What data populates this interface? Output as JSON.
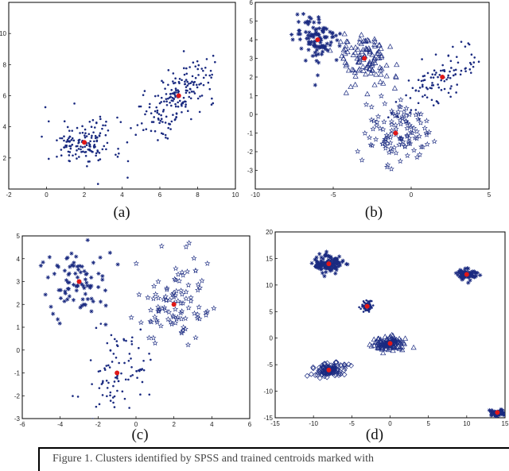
{
  "chart_data": [
    {
      "type": "scatter",
      "panel_label": "(a)",
      "xlim": [
        -2,
        10
      ],
      "ylim": [
        0,
        12
      ],
      "xticks": [
        "-2",
        "0",
        "2",
        "4",
        "6",
        "8",
        "10"
      ],
      "yticks": [
        "2",
        "4",
        "6",
        "8",
        "10"
      ],
      "series": [
        {
          "marker": "dot",
          "color": "#1a2a80",
          "clusters": [
            {
              "cx": 2,
              "cy": 3,
              "sx": 1.0,
              "sy": 0.75,
              "r": -0.05,
              "n": 150
            },
            {
              "cx": 7,
              "cy": 6,
              "sx": 1.0,
              "sy": 1.2,
              "r": 0.7,
              "n": 190
            }
          ]
        }
      ],
      "centroids": [
        [
          2,
          3
        ],
        [
          7,
          6
        ]
      ]
    },
    {
      "type": "scatter",
      "panel_label": "(b)",
      "xlim": [
        -10,
        5
      ],
      "ylim": [
        -4,
        6
      ],
      "xticks": [
        "-10",
        "-5",
        "0",
        "5"
      ],
      "yticks": [
        "-3",
        "-2",
        "-1",
        "0",
        "1",
        "2",
        "3",
        "4",
        "5",
        "6"
      ],
      "series": [
        {
          "marker": "asterisk",
          "color": "#1a2a80",
          "clusters": [
            {
              "cx": -6,
              "cy": 4,
              "sx": 0.7,
              "sy": 0.6,
              "r": 0,
              "n": 110
            }
          ]
        },
        {
          "marker": "triangle",
          "color": "#1a2a80",
          "clusters": [
            {
              "cx": -3,
              "cy": 3,
              "sx": 0.9,
              "sy": 0.8,
              "r": -0.2,
              "n": 110
            }
          ]
        },
        {
          "marker": "dot",
          "color": "#1a2a80",
          "clusters": [
            {
              "cx": 2,
              "cy": 2,
              "sx": 1.4,
              "sy": 1.0,
              "r": 0.8,
              "n": 110
            }
          ]
        },
        {
          "marker": "star",
          "color": "#1a2a80",
          "clusters": [
            {
              "cx": -1,
              "cy": -1,
              "sx": 1.0,
              "sy": 0.9,
              "r": 0,
              "n": 110
            }
          ]
        }
      ],
      "centroids": [
        [
          -6,
          4
        ],
        [
          -3,
          3
        ],
        [
          2,
          2
        ],
        [
          -1,
          -1
        ]
      ]
    },
    {
      "type": "scatter",
      "panel_label": "(c)",
      "xlim": [
        -6,
        6
      ],
      "ylim": [
        -3,
        5
      ],
      "xticks": [
        "-6",
        "-4",
        "-2",
        "0",
        "2",
        "4",
        "6"
      ],
      "yticks": [
        "-3",
        "-2",
        "-1",
        "0",
        "1",
        "2",
        "3",
        "4",
        "5"
      ],
      "series": [
        {
          "marker": "asterisk",
          "color": "#1a2a80",
          "clusters": [
            {
              "cx": -3,
              "cy": 3,
              "sx": 0.9,
              "sy": 0.7,
              "r": 0,
              "n": 85
            }
          ]
        },
        {
          "marker": "star",
          "color": "#1a2a80",
          "clusters": [
            {
              "cx": 2,
              "cy": 2,
              "sx": 1.0,
              "sy": 0.9,
              "r": 0.2,
              "n": 100
            }
          ]
        },
        {
          "marker": "dot",
          "color": "#1a2a80",
          "clusters": [
            {
              "cx": -1,
              "cy": -1,
              "sx": 0.8,
              "sy": 0.9,
              "r": 0,
              "n": 90
            }
          ]
        }
      ],
      "centroids": [
        [
          -3,
          3
        ],
        [
          2,
          2
        ],
        [
          -1,
          -1
        ]
      ]
    },
    {
      "type": "scatter",
      "panel_label": "(d)",
      "xlim": [
        -15,
        15
      ],
      "ylim": [
        -15,
        20
      ],
      "xticks": [
        "-15",
        "-10",
        "-5",
        "0",
        "5",
        "10",
        "15"
      ],
      "yticks": [
        "-15",
        "-10",
        "-5",
        "0",
        "5",
        "10",
        "15",
        "20"
      ],
      "series": [
        {
          "marker": "asterisk",
          "color": "#1a2a80",
          "clusters": [
            {
              "cx": -8,
              "cy": 14,
              "sx": 0.9,
              "sy": 0.8,
              "r": 0,
              "n": 120
            },
            {
              "cx": 10,
              "cy": 12,
              "sx": 0.6,
              "sy": 0.5,
              "r": 0,
              "n": 70
            },
            {
              "cx": 14,
              "cy": -14,
              "sx": 0.5,
              "sy": 0.4,
              "r": 0,
              "n": 45
            }
          ]
        },
        {
          "marker": "diamond",
          "color": "#1a2a80",
          "clusters": [
            {
              "cx": -8,
              "cy": -6,
              "sx": 1.1,
              "sy": 0.7,
              "r": 0.4,
              "n": 110
            }
          ]
        },
        {
          "marker": "dot",
          "color": "#1a2a80",
          "clusters": [
            {
              "cx": -3,
              "cy": 6,
              "sx": 0.5,
              "sy": 0.5,
              "r": 0,
              "n": 60
            }
          ]
        },
        {
          "marker": "triangle",
          "color": "#1a2a80",
          "clusters": [
            {
              "cx": 0,
              "cy": -1,
              "sx": 1.1,
              "sy": 0.6,
              "r": 0,
              "n": 110
            }
          ]
        }
      ],
      "centroids": [
        [
          -8,
          14
        ],
        [
          10,
          12
        ],
        [
          -3,
          6
        ],
        [
          0,
          -1
        ],
        [
          -8,
          -6
        ],
        [
          14,
          -14
        ]
      ]
    }
  ],
  "caption": "Figure 1. Clusters identified by SPSS and trained centroids marked with"
}
